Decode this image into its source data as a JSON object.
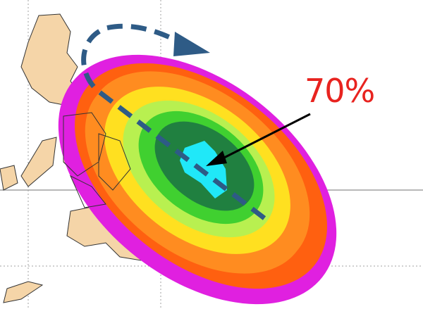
{
  "annotation": {
    "label": "70%",
    "color": "#e8231f"
  },
  "probability_colors": [
    "#e020e0",
    "#ff6010",
    "#ff8c20",
    "#ffe020",
    "#b8f050",
    "#40d030",
    "#208040",
    "#20e8f8"
  ],
  "land_color": "#f5d5a8",
  "track_arrow_color": "#2e5b86",
  "icons": [
    "dashed-track-arrow-icon",
    "pointer-arrow-icon"
  ]
}
